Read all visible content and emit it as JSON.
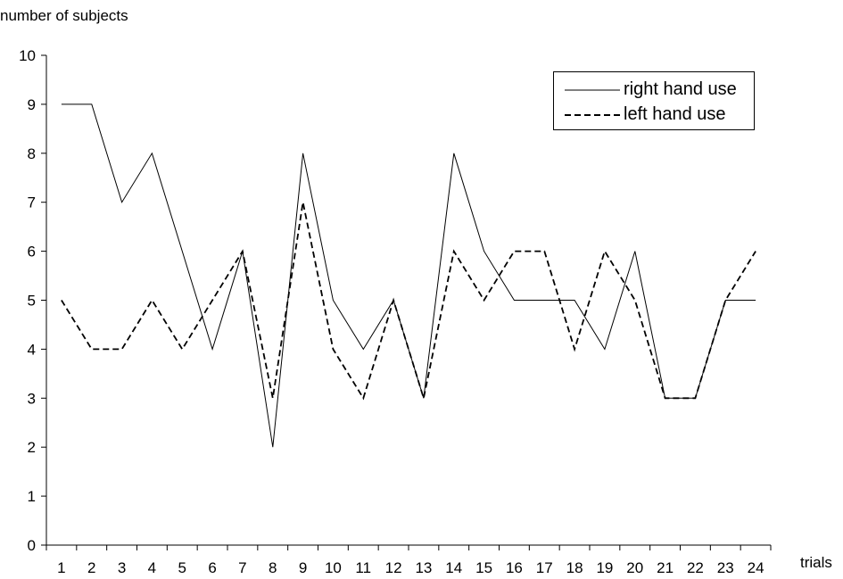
{
  "chart_data": {
    "type": "line",
    "ylabel": "number of subjects",
    "xlabel": "trials",
    "x": [
      1,
      2,
      3,
      4,
      5,
      6,
      7,
      8,
      9,
      10,
      11,
      12,
      13,
      14,
      15,
      16,
      17,
      18,
      19,
      20,
      21,
      22,
      23,
      24
    ],
    "ylim": [
      0,
      10
    ],
    "yticks": [
      0,
      1,
      2,
      3,
      4,
      5,
      6,
      7,
      8,
      9,
      10
    ],
    "grid": false,
    "legend_position": "top-right",
    "series": [
      {
        "name": "right hand use",
        "style": "solid",
        "values": [
          9,
          9,
          7,
          8,
          6,
          4,
          6,
          2,
          8,
          5,
          4,
          5,
          3,
          8,
          6,
          5,
          5,
          5,
          4,
          6,
          3,
          3,
          5,
          5
        ]
      },
      {
        "name": "left hand use",
        "style": "dashed",
        "values": [
          5,
          4,
          4,
          5,
          4,
          5,
          6,
          3,
          7,
          4,
          3,
          5,
          3,
          6,
          5,
          6,
          6,
          4,
          6,
          5,
          3,
          3,
          5,
          6
        ]
      }
    ]
  }
}
